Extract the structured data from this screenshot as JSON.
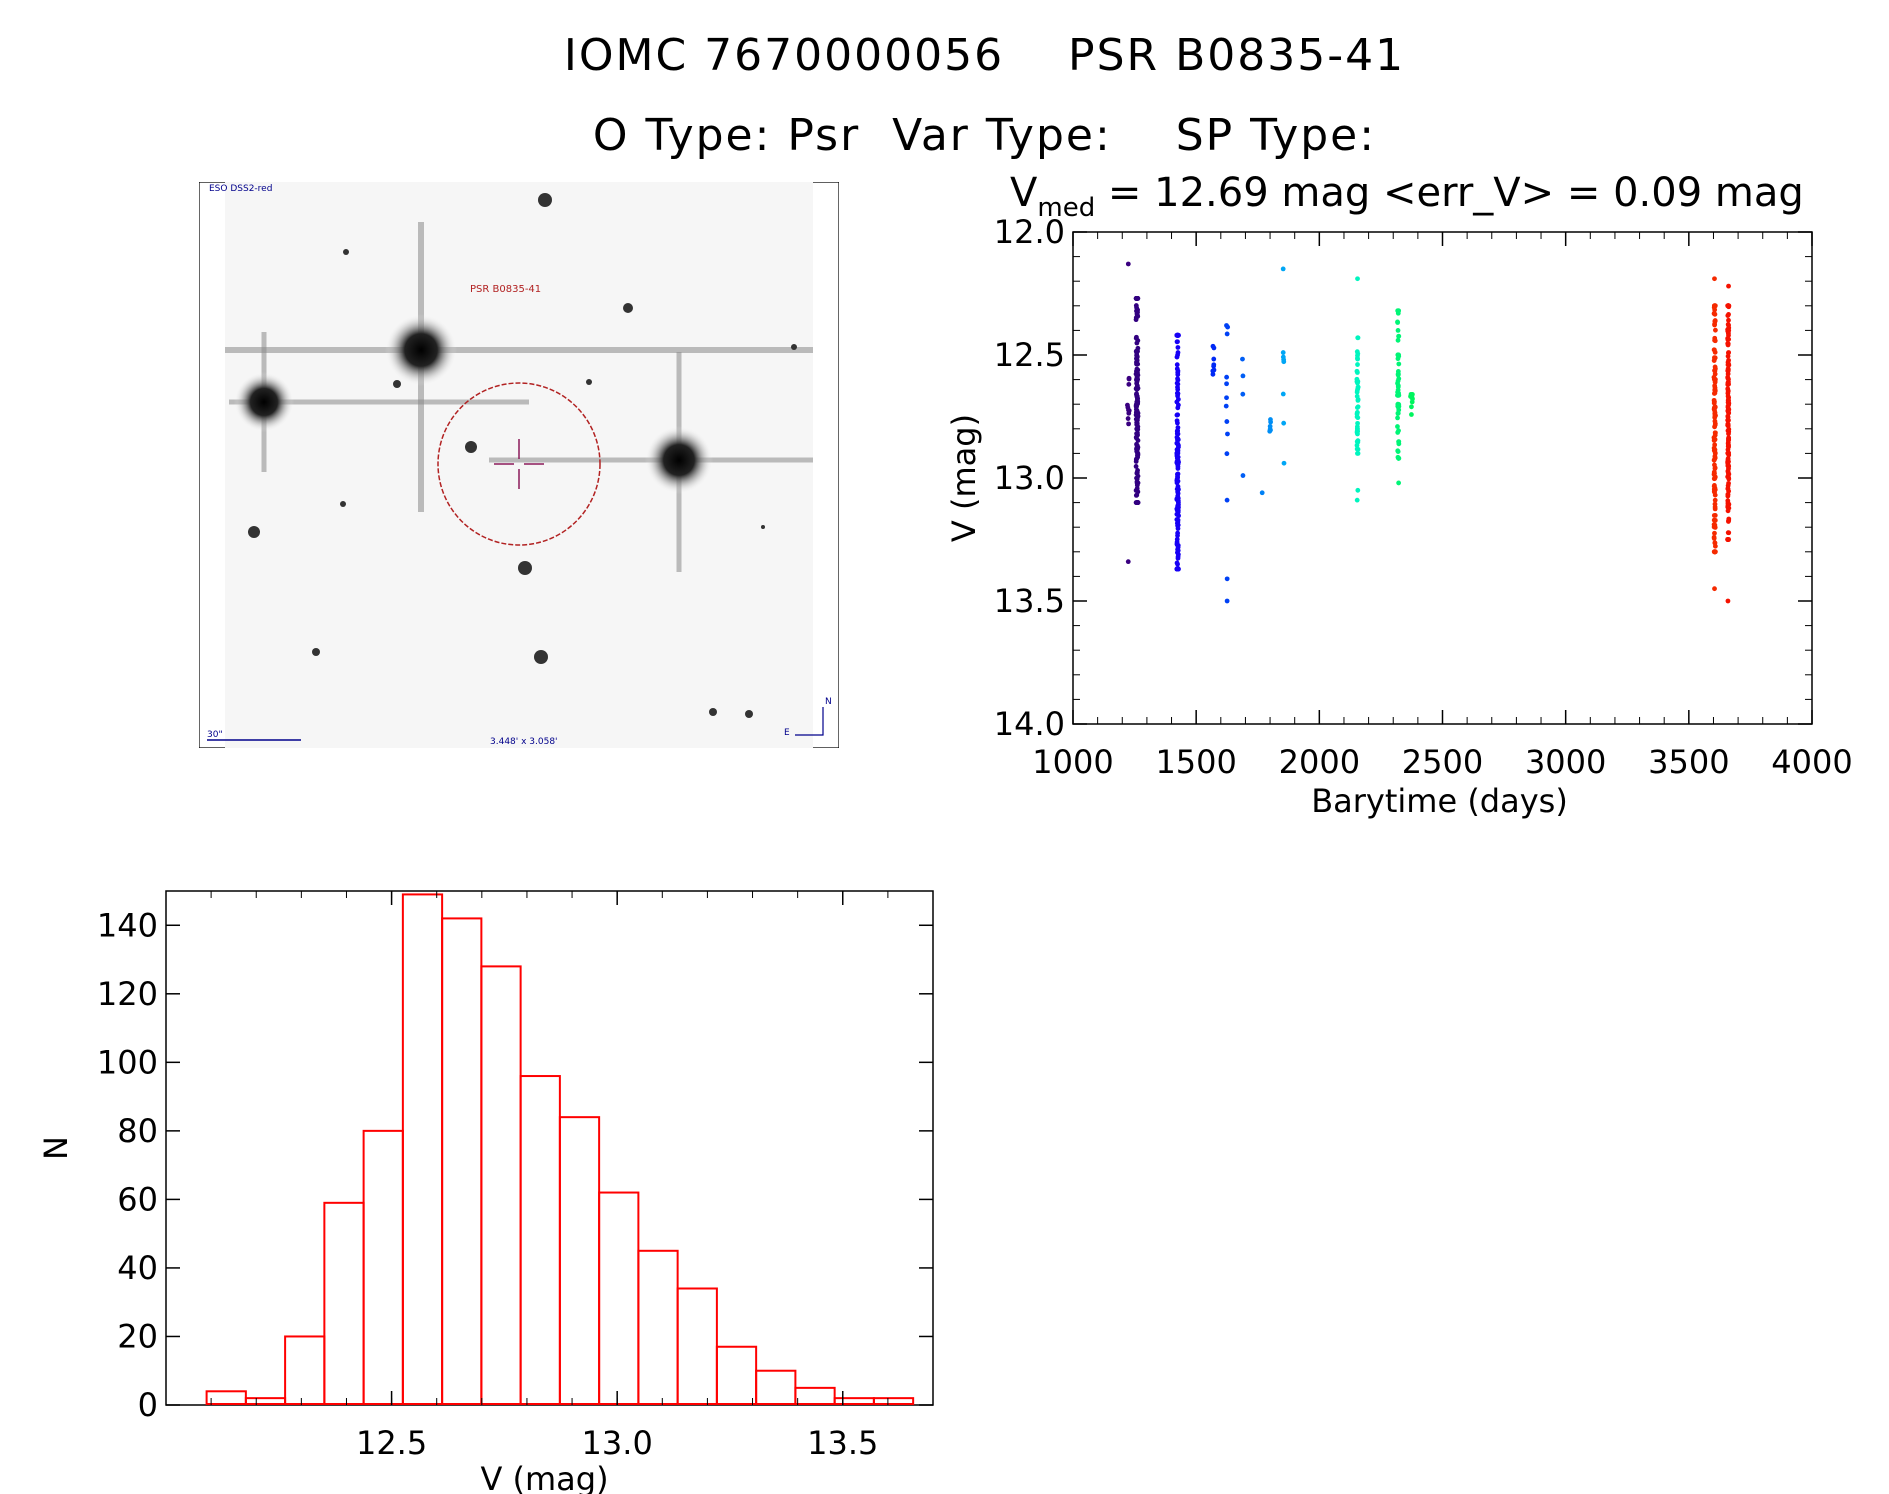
{
  "header": {
    "line1": "IOMC 7670000056    PSR B0835-41",
    "line2": "O Type: Psr  Var Type:    SP Type:"
  },
  "finder_chart": {
    "survey_label": "ESO DSS2-red",
    "object_label": "PSR B0835-41",
    "scale_label": "30\"",
    "size_label": "3.448' x 3.058'",
    "north_label": "N",
    "east_label": "E",
    "circle_color": "#b22222",
    "text_color": "#00008b"
  },
  "chart_data": [
    {
      "type": "scatter",
      "title_main": "V",
      "title_sub": "med",
      "title_rest": " = 12.69 mag <err_V> = 0.09 mag",
      "xlabel": "Barytime (days)",
      "ylabel": "V (mag)",
      "xlim": [
        1000,
        4000
      ],
      "ylim": [
        12.0,
        14.0
      ],
      "y_inverted": true,
      "x_ticks": [
        1000,
        1500,
        2000,
        2500,
        3000,
        3500,
        4000
      ],
      "x_tick_labels": [
        "1000",
        "1500",
        "2000",
        "2500",
        "3000",
        "3500",
        "4000"
      ],
      "y_ticks": [
        12.0,
        12.5,
        13.0,
        13.5,
        14.0
      ],
      "y_tick_labels": [
        "12.0",
        "12.5",
        "13.0",
        "13.5",
        "14.0"
      ],
      "color_by_time": true,
      "clusters": [
        {
          "x": 1225,
          "xspread": 8,
          "ymin": 12.55,
          "ymax": 12.78,
          "n": 10,
          "outliers": [
            12.13,
            13.34
          ]
        },
        {
          "x": 1260,
          "xspread": 8,
          "ymin": 12.27,
          "ymax": 13.1,
          "n": 170,
          "outliers": []
        },
        {
          "x": 1425,
          "xspread": 7,
          "ymin": 12.42,
          "ymax": 13.37,
          "n": 150,
          "outliers": []
        },
        {
          "x": 1570,
          "xspread": 6,
          "ymin": 12.45,
          "ymax": 12.58,
          "n": 8,
          "outliers": []
        },
        {
          "x": 1625,
          "xspread": 6,
          "ymin": 12.38,
          "ymax": 12.92,
          "n": 10,
          "outliers": [
            13.09,
            13.41,
            13.5
          ]
        },
        {
          "x": 1690,
          "xspread": 4,
          "ymin": 12.49,
          "ymax": 12.66,
          "n": 3,
          "outliers": [
            12.99
          ]
        },
        {
          "x": 1770,
          "xspread": 4,
          "ymin": 13.06,
          "ymax": 13.06,
          "n": 1,
          "outliers": []
        },
        {
          "x": 1800,
          "xspread": 8,
          "ymin": 12.72,
          "ymax": 12.81,
          "n": 6,
          "outliers": []
        },
        {
          "x": 1855,
          "xspread": 4,
          "ymin": 12.49,
          "ymax": 12.8,
          "n": 6,
          "outliers": [
            12.15,
            12.94
          ]
        },
        {
          "x": 2155,
          "xspread": 5,
          "ymin": 12.43,
          "ymax": 12.9,
          "n": 45,
          "outliers": [
            12.19,
            13.05,
            13.09
          ]
        },
        {
          "x": 2320,
          "xspread": 6,
          "ymin": 12.32,
          "ymax": 12.92,
          "n": 55,
          "outliers": [
            13.02
          ]
        },
        {
          "x": 2375,
          "xspread": 10,
          "ymin": 12.66,
          "ymax": 12.76,
          "n": 8,
          "outliers": []
        },
        {
          "x": 3605,
          "xspread": 6,
          "ymin": 12.3,
          "ymax": 13.3,
          "n": 130,
          "outliers": [
            12.19,
            13.45
          ]
        },
        {
          "x": 3660,
          "xspread": 5,
          "ymin": 12.3,
          "ymax": 13.25,
          "n": 160,
          "outliers": [
            12.22,
            13.5
          ]
        }
      ]
    },
    {
      "type": "bar",
      "subtype": "histogram",
      "xlabel": "V (mag)",
      "ylabel": "N",
      "xlim": [
        12.0,
        13.7
      ],
      "ylim": [
        0,
        150
      ],
      "x_ticks": [
        12.5,
        13.0,
        13.5
      ],
      "x_tick_labels": [
        "12.5",
        "13.0",
        "13.5"
      ],
      "y_ticks": [
        0,
        20,
        40,
        60,
        80,
        100,
        120,
        140
      ],
      "y_tick_labels": [
        "0",
        "20",
        "40",
        "60",
        "80",
        "100",
        "120",
        "140"
      ],
      "bin_width": 0.087,
      "bin_start": 12.09,
      "values": [
        4,
        2,
        20,
        59,
        80,
        149,
        142,
        128,
        96,
        84,
        62,
        45,
        34,
        17,
        10,
        5,
        2,
        2
      ],
      "color": "#ff0000"
    }
  ]
}
